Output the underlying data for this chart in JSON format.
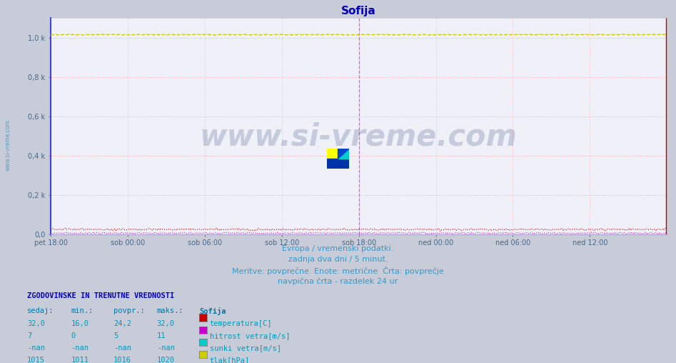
{
  "title": "Sofija",
  "title_color": "#0000bb",
  "fig_bg": "#c8ccd8",
  "plot_bg": "#f0f0f8",
  "grid_color": "#ffaaaa",
  "border_left_color": "#4444cc",
  "border_right_color": "#cc0000",
  "y_min": 0,
  "y_max": 1100,
  "y_ticks": [
    0,
    200,
    400,
    600,
    800,
    1000
  ],
  "y_tick_labels": [
    "0,0",
    "0,2 k",
    "0,4 k",
    "0,6 k",
    "0,8 k",
    "1,0 k"
  ],
  "x_tick_labels": [
    "pet 18:00",
    "sob 00:00",
    "sob 06:00",
    "sob 12:00",
    "sob 18:00",
    "ned 00:00",
    "ned 06:00",
    "ned 12:00"
  ],
  "n_points": 576,
  "temp_color": "#cc0000",
  "wind_color": "#cc00cc",
  "gust_color": "#00cccc",
  "pressure_color": "#cccc00",
  "footer_color": "#3399cc",
  "footer_text1": "Evropa / vremenski podatki.",
  "footer_text2": "zadnja dva dni / 5 minut.",
  "footer_text3": "Meritve: povprečne  Enote: metrične  Črta: povprečje",
  "footer_text4": "navpična črta - razdelek 24 ur",
  "watermark": "www.si-vreme.com",
  "watermark_color": "#1a3a6e",
  "sidebar_color": "#6699bb",
  "legend_title": "ZGODOVINSKE IN TRENUTNE VREDNOSTI",
  "legend_title_color": "#0000cc",
  "legend_header_color": "#0077aa",
  "col_headers": [
    "sedaj:",
    "min.:",
    "povpr.:",
    "maks.:",
    "Sofija"
  ],
  "table_color": "#0099bb",
  "rows": [
    [
      "32,0",
      "16,0",
      "24,2",
      "32,0",
      "#cc0000",
      "temperatura[C]"
    ],
    [
      "7",
      "0",
      "5",
      "11",
      "#cc00cc",
      "hitrost vetra[m/s]"
    ],
    [
      "-nan",
      "-nan",
      "-nan",
      "-nan",
      "#00cccc",
      "sunki vetra[m/s]"
    ],
    [
      "1015",
      "1011",
      "1016",
      "1020",
      "#cccc00",
      "tlak[hPa]"
    ]
  ],
  "temp_min": 16.0,
  "temp_max": 32.0,
  "temp_avg": 24.2,
  "wind_min": 0,
  "wind_max": 11,
  "wind_avg": 5,
  "press_min": 1011,
  "press_max": 1020,
  "press_avg": 1016
}
